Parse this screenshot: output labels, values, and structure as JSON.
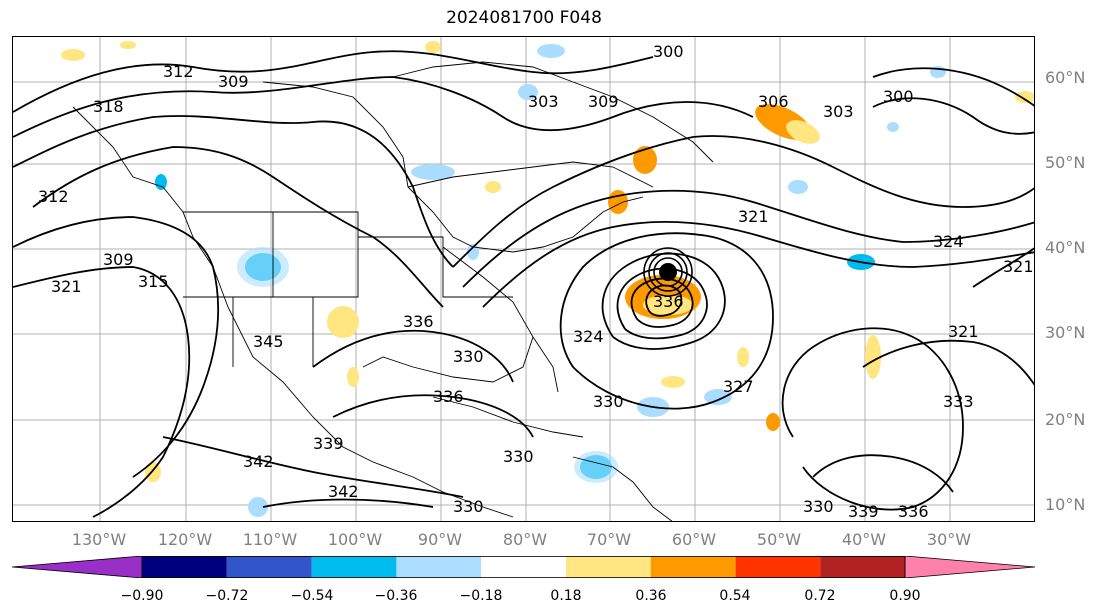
{
  "title": "2024081700 F048",
  "lat_labels": [
    "60°N",
    "50°N",
    "40°N",
    "30°N",
    "20°N",
    "10°N"
  ],
  "lon_labels": [
    "130°W",
    "120°W",
    "110°W",
    "100°W",
    "90°W",
    "80°W",
    "70°W",
    "60°W",
    "50°W",
    "40°W",
    "30°W"
  ],
  "contour_labels": [
    "300",
    "303",
    "306",
    "309",
    "312",
    "315",
    "318",
    "321",
    "324",
    "327",
    "330",
    "333",
    "336",
    "339",
    "342",
    "345"
  ],
  "colorbar": {
    "ticks": [
      "−0.90",
      "−0.72",
      "−0.54",
      "−0.36",
      "−0.18",
      "0.18",
      "0.36",
      "0.54",
      "0.72",
      "0.90"
    ],
    "colors": [
      "#9a2fc7",
      "#00007f",
      "#3355cc",
      "#00bbee",
      "#aaddff",
      "#ffffff",
      "#ffe680",
      "#ff9900",
      "#ff3300",
      "#b22222",
      "#ff80aa"
    ]
  },
  "hurricane_label": "Hurricane center near 37°N, 65°W"
}
